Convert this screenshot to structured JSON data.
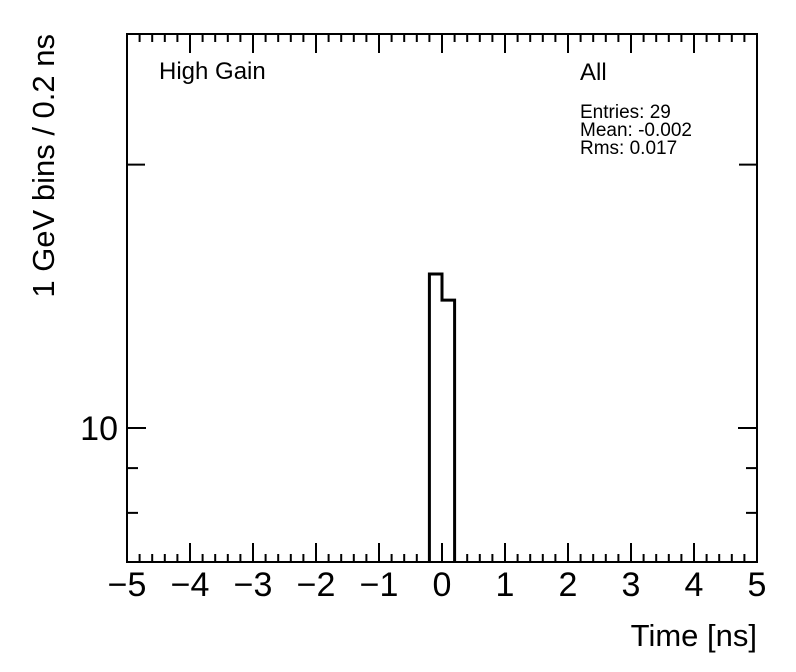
{
  "chart_data": {
    "type": "bar",
    "subtype": "root-step-histogram",
    "title": "",
    "corner_label": "High Gain",
    "stats": {
      "title": "All",
      "lines": [
        "Entries: 29",
        "Mean: -0.002",
        "Rms: 0.017"
      ]
    },
    "entries": 29,
    "mean": -0.002,
    "rms": 0.017,
    "xlabel": "Time [ns]",
    "ylabel": "1 GeV bins / 0.2 ns",
    "xlim": [
      -5,
      5
    ],
    "ylim": [
      7.03,
      28.2
    ],
    "yscale": "log",
    "grid": false,
    "x_major_ticks": [
      -5,
      -4,
      -3,
      -2,
      -1,
      0,
      1,
      2,
      3,
      4,
      5
    ],
    "x_tick_labels": [
      "−5",
      "−4",
      "−3",
      "−2",
      "−1",
      "0",
      "1",
      "2",
      "3",
      "4",
      "5"
    ],
    "x_minor_step": 0.2,
    "y_labeled_ticks": [
      10
    ],
    "y_tick_labels": [
      "10"
    ],
    "bins": {
      "edges": [
        -0.2,
        0.0,
        0.2
      ],
      "counts": [
        15,
        14
      ],
      "bin_width_ns": 0.2
    },
    "line_color": "#000000"
  }
}
